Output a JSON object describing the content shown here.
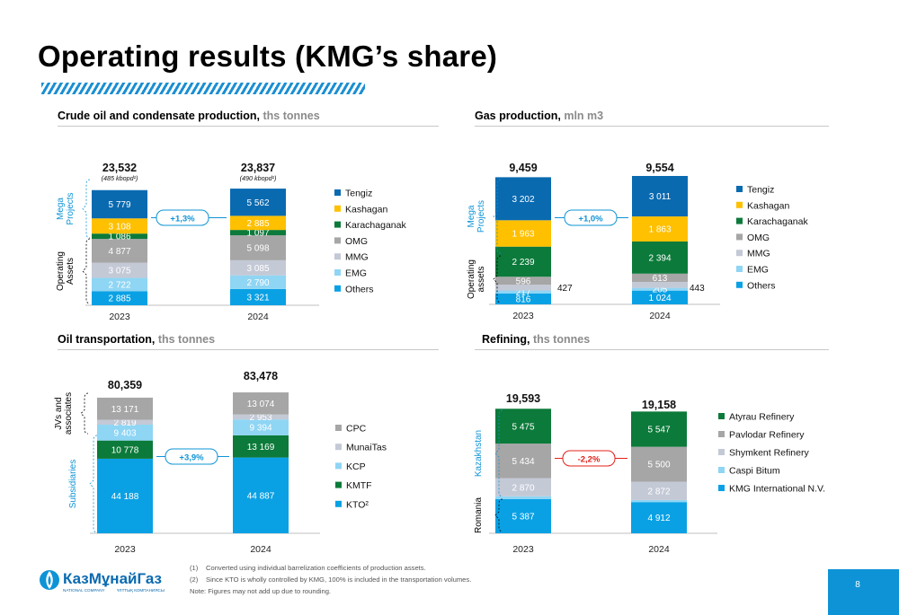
{
  "title": "Operating results (KMG’s share)",
  "page_number": "8",
  "footnotes": [
    {
      "num": "(1)",
      "text": "Converted using individual barrelization coefficients of production assets."
    },
    {
      "num": "(2)",
      "text": "Since KTO is wholly controlled by KMG, 100% is included in the transportation volumes."
    }
  ],
  "note": "Note: Figures may not add up due to rounding.",
  "logo": {
    "name": "КазМұнайГаз",
    "sub_left": "NATIONAL COMPANY",
    "sub_right": "ҰЛТТЫҚ КОМПАНИЯСЫ"
  },
  "colors": {
    "accent": "#0e94d6",
    "dark_blue": "#0a6ab0",
    "yellow": "#ffc000",
    "green": "#0c7a3a",
    "gray": "#a6a6a6",
    "light_gray": "#c4c9d6",
    "light_blue": "#8fd5f4",
    "blue": "#0aa1e4",
    "red": "#e32119"
  },
  "chart_data": [
    {
      "id": "crude",
      "type": "bar",
      "stacked": true,
      "title": "Crude oil and condensate production,",
      "unit": "ths tonnes",
      "categories": [
        "2023",
        "2024"
      ],
      "totals": [
        "23,532",
        "23,837"
      ],
      "total_notes": [
        "(485 kbopd¹)",
        "(490 kbopd¹)"
      ],
      "change": "+1,3%",
      "change_color": "#0e94d6",
      "groups": [
        {
          "label": "Mega Projects",
          "lines": [
            "Mega",
            "Projects"
          ],
          "color": "#0e94d6"
        },
        {
          "label": "Operating Assets",
          "lines": [
            "Operating",
            "Assets"
          ],
          "color": "#000000"
        }
      ],
      "series": [
        {
          "name": "Others",
          "color": "#0aa1e4",
          "values": [
            2885,
            3321
          ],
          "labels": [
            "2 885",
            "3 321"
          ]
        },
        {
          "name": "EMG",
          "color": "#8fd5f4",
          "values": [
            2722,
            2790
          ],
          "labels": [
            "2 722",
            "2 790"
          ]
        },
        {
          "name": "MMG",
          "color": "#c4c9d6",
          "values": [
            3075,
            3085
          ],
          "labels": [
            "3 075",
            "3 085"
          ]
        },
        {
          "name": "OMG",
          "color": "#a6a6a6",
          "values": [
            4877,
            5098
          ],
          "labels": [
            "4 877",
            "5 098"
          ]
        },
        {
          "name": "Karachaganak",
          "color": "#0c7a3a",
          "values": [
            1086,
            1097
          ],
          "labels": [
            "1 086",
            "1 097"
          ]
        },
        {
          "name": "Kashagan",
          "color": "#ffc000",
          "values": [
            3108,
            2885
          ],
          "labels": [
            "3 108",
            "2 885"
          ]
        },
        {
          "name": "Tengiz",
          "color": "#0a6ab0",
          "values": [
            5779,
            5562
          ],
          "labels": [
            "5 779",
            "5 562"
          ]
        }
      ],
      "side_labels": []
    },
    {
      "id": "gas",
      "type": "bar",
      "stacked": true,
      "title": "Gas production,",
      "unit": "mln m3",
      "categories": [
        "2023",
        "2024"
      ],
      "totals": [
        "9,459",
        "9,554"
      ],
      "total_notes": [
        "",
        ""
      ],
      "change": "+1,0%",
      "change_color": "#0e94d6",
      "groups": [
        {
          "label": "Mega Projects",
          "lines": [
            "Mega",
            "Projects"
          ],
          "color": "#0e94d6"
        },
        {
          "label": "Operating assets",
          "lines": [
            "Operating",
            "assets"
          ],
          "color": "#000000"
        }
      ],
      "series": [
        {
          "name": "Others",
          "color": "#0aa1e4",
          "values": [
            816,
            1024
          ],
          "labels": [
            "816",
            "1 024"
          ]
        },
        {
          "name": "EMG",
          "color": "#8fd5f4",
          "values": [
            217,
            205
          ],
          "labels": [
            "217",
            "205"
          ]
        },
        {
          "name": "MMG",
          "color": "#c4c9d6",
          "values": [
            427,
            443
          ],
          "labels": [
            "",
            ""
          ]
        },
        {
          "name": "OMG",
          "color": "#a6a6a6",
          "values": [
            596,
            613
          ],
          "labels": [
            "596",
            "613"
          ]
        },
        {
          "name": "Karachaganak",
          "color": "#0c7a3a",
          "values": [
            2239,
            2394
          ],
          "labels": [
            "2 239",
            "2 394"
          ]
        },
        {
          "name": "Kashagan",
          "color": "#ffc000",
          "values": [
            1963,
            1863
          ],
          "labels": [
            "1 963",
            "1 863"
          ]
        },
        {
          "name": "Tengiz",
          "color": "#0a6ab0",
          "values": [
            3202,
            3011
          ],
          "labels": [
            "3 202",
            "3 011"
          ]
        }
      ],
      "side_labels": [
        "427",
        "443"
      ]
    },
    {
      "id": "transport",
      "type": "bar",
      "stacked": true,
      "title": "Oil transportation,",
      "unit": "ths tonnes",
      "categories": [
        "2023",
        "2024"
      ],
      "totals": [
        "80,359",
        "83,478"
      ],
      "total_notes": [
        "",
        ""
      ],
      "change": "+3,9%",
      "change_color": "#0e94d6",
      "groups": [
        {
          "label": "JVs and associates",
          "lines": [
            "JVs and",
            "associates"
          ],
          "color": "#000000"
        },
        {
          "label": "Subsidiaries",
          "lines": [
            "Subsidiaries"
          ],
          "color": "#0e94d6"
        }
      ],
      "series": [
        {
          "name": "KTO²",
          "color": "#0aa1e4",
          "values": [
            44188,
            44887
          ],
          "labels": [
            "44 188",
            "44 887"
          ]
        },
        {
          "name": "KMTF",
          "color": "#0c7a3a",
          "values": [
            10778,
            13169
          ],
          "labels": [
            "10 778",
            "13 169"
          ]
        },
        {
          "name": "KCP",
          "color": "#8fd5f4",
          "values": [
            9403,
            9394
          ],
          "labels": [
            "9 403",
            "9 394"
          ]
        },
        {
          "name": "MunaiTas",
          "color": "#c4c9d6",
          "values": [
            2819,
            2953
          ],
          "labels": [
            "2 819",
            "2 953"
          ]
        },
        {
          "name": "CPC",
          "color": "#a6a6a6",
          "values": [
            13171,
            13074
          ],
          "labels": [
            "13 171",
            "13 074"
          ]
        }
      ],
      "side_labels": []
    },
    {
      "id": "refining",
      "type": "bar",
      "stacked": true,
      "title": "Refining,",
      "unit": "ths tonnes",
      "categories": [
        "2023",
        "2024"
      ],
      "totals": [
        "19,593",
        "19,158"
      ],
      "total_notes": [
        "",
        ""
      ],
      "change": "-2,2%",
      "change_color": "#e32119",
      "groups": [
        {
          "label": "Kazakhstan",
          "lines": [
            "Kazakhstan"
          ],
          "color": "#0e94d6"
        },
        {
          "label": "Romania",
          "lines": [
            "Romania"
          ],
          "color": "#000000"
        }
      ],
      "series": [
        {
          "name": "KMG International N.V.",
          "color": "#0aa1e4",
          "values": [
            5387,
            4912
          ],
          "labels": [
            "5 387",
            "4 912"
          ]
        },
        {
          "name": "Caspi Bitum",
          "color": "#8fd5f4",
          "values": [
            427,
            326
          ],
          "labels": [
            "",
            ""
          ]
        },
        {
          "name": "Shymkent Refinery",
          "color": "#c4c9d6",
          "values": [
            2870,
            2872
          ],
          "labels": [
            "2 870",
            "2 872"
          ]
        },
        {
          "name": "Pavlodar Refinery",
          "color": "#a6a6a6",
          "values": [
            5434,
            5500
          ],
          "labels": [
            "5 434",
            "5 500"
          ]
        },
        {
          "name": "Atyrau Refinery",
          "color": "#0c7a3a",
          "values": [
            5475,
            5547
          ],
          "labels": [
            "5 475",
            "5 547"
          ]
        }
      ],
      "side_labels": []
    }
  ]
}
